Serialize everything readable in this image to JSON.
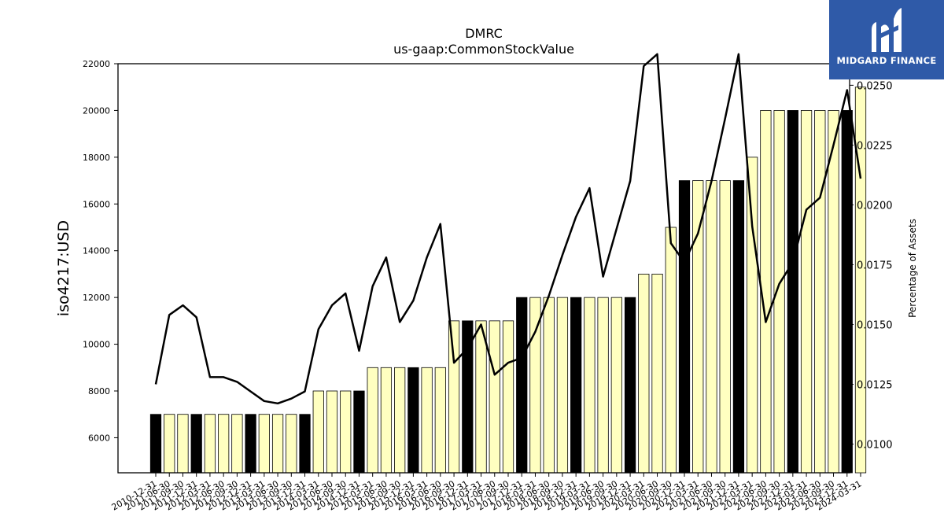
{
  "chart_data": {
    "type": "bar",
    "title": "DMRC",
    "subtitle": "us-gaap:CommonStockValue",
    "ylabel": "iso4217:USD",
    "y2label": "Percentage of Assets",
    "ylim": [
      4500,
      22000
    ],
    "y2lim": [
      0.0088,
      0.0259
    ],
    "yticks": [
      6000,
      8000,
      10000,
      12000,
      14000,
      16000,
      18000,
      20000,
      22000
    ],
    "y2ticks": [
      "0.0100",
      "0.0125",
      "0.0150",
      "0.0175",
      "0.0200",
      "0.0225",
      "0.0250"
    ],
    "grid": false,
    "categories": [
      "2010-12-31",
      "2011-06-30",
      "2011-09-30",
      "2011-12-31",
      "2012-03-31",
      "2012-06-30",
      "2012-09-30",
      "2012-12-31",
      "2013-03-31",
      "2013-06-30",
      "2013-09-30",
      "2013-12-31",
      "2014-03-31",
      "2014-06-30",
      "2014-09-30",
      "2014-12-31",
      "2015-03-31",
      "2015-06-30",
      "2015-09-30",
      "2015-12-31",
      "2016-03-31",
      "2016-06-30",
      "2016-09-30",
      "2016-12-31",
      "2017-03-31",
      "2017-06-30",
      "2017-09-30",
      "2017-12-31",
      "2018-03-31",
      "2018-06-30",
      "2018-09-30",
      "2018-12-31",
      "2019-03-31",
      "2019-06-30",
      "2019-09-30",
      "2019-12-31",
      "2020-03-31",
      "2020-06-30",
      "2020-09-30",
      "2020-12-31",
      "2021-03-31",
      "2021-06-30",
      "2021-09-30",
      "2021-12-31",
      "2022-03-31",
      "2022-06-30",
      "2022-09-30",
      "2022-12-31",
      "2023-03-31",
      "2023-06-30",
      "2023-09-30",
      "2023-12-31",
      "2024-03-31"
    ],
    "series": [
      {
        "type": "bar",
        "values": [
          7000,
          7000,
          7000,
          7000,
          7000,
          7000,
          7000,
          7000,
          7000,
          7000,
          7000,
          7000,
          8000,
          8000,
          8000,
          8000,
          9000,
          9000,
          9000,
          9000,
          9000,
          9000,
          11000,
          11000,
          11000,
          11000,
          11000,
          12000,
          12000,
          12000,
          12000,
          12000,
          12000,
          12000,
          12000,
          12000,
          13000,
          13000,
          15000,
          17000,
          17000,
          17000,
          17000,
          17000,
          18000,
          20000,
          20000,
          20000,
          20000,
          20000,
          20000,
          20000,
          21000
        ],
        "highlight": [
          true,
          false,
          false,
          true,
          false,
          false,
          false,
          true,
          false,
          false,
          false,
          true,
          false,
          false,
          false,
          true,
          false,
          false,
          false,
          true,
          false,
          false,
          false,
          true,
          false,
          false,
          false,
          true,
          false,
          false,
          false,
          true,
          false,
          false,
          false,
          true,
          false,
          false,
          false,
          true,
          false,
          false,
          false,
          true,
          false,
          false,
          false,
          true,
          false,
          false,
          false,
          true,
          false
        ]
      },
      {
        "type": "line",
        "axis": "right",
        "values": [
          0.0125,
          0.0154,
          0.0158,
          0.0153,
          0.0128,
          0.0128,
          0.0126,
          0.0122,
          0.0118,
          0.0117,
          0.0119,
          0.0122,
          0.0148,
          0.0158,
          0.0163,
          0.0139,
          0.0166,
          0.0178,
          0.0151,
          0.016,
          0.0178,
          0.0192,
          0.0134,
          0.014,
          0.015,
          0.0129,
          0.0134,
          0.0136,
          0.0147,
          0.0162,
          0.0179,
          0.0195,
          0.0207,
          0.017,
          0.019,
          0.021,
          0.0258,
          0.0263,
          0.0184,
          0.0176,
          0.0188,
          0.021,
          0.0236,
          0.0263,
          0.0191,
          0.0151,
          0.0167,
          0.0176,
          0.0198,
          0.0203,
          0.0225,
          0.0248,
          0.0211
        ]
      }
    ],
    "colors": {
      "bar_fill": "#ffffc0",
      "bar_highlight": "#000000",
      "line": "#000000"
    }
  },
  "logo": {
    "text": "MIDGARD FINANCE",
    "icon": "midgard-logo-icon"
  }
}
